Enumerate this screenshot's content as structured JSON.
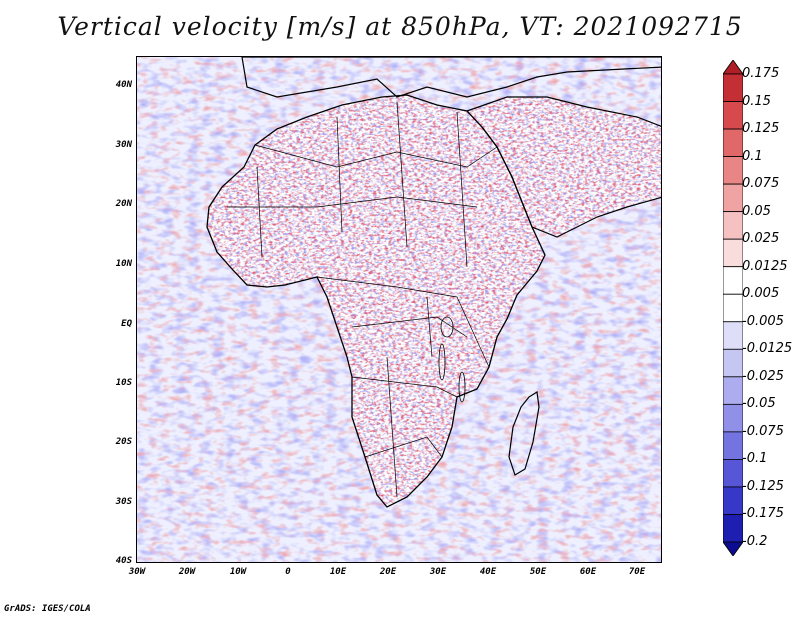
{
  "title": "Vertical velocity [m/s] at 850hPa, VT: 2021092715",
  "credit": "GrADS: IGES/COLA",
  "map": {
    "region": "Africa",
    "variable": "Vertical velocity",
    "units": "m/s",
    "level": "850hPa",
    "valid_time": "2021092715"
  },
  "axes": {
    "lat_labels": [
      "40N",
      "30N",
      "20N",
      "10N",
      "EQ",
      "10S",
      "20S",
      "30S",
      "40S"
    ],
    "lon_labels": [
      "30W",
      "20W",
      "10W",
      "0",
      "10E",
      "20E",
      "30E",
      "40E",
      "50E",
      "60E",
      "70E"
    ]
  },
  "colorbar": {
    "labels": [
      "0.175",
      "0.15",
      "0.125",
      "0.1",
      "0.075",
      "0.05",
      "0.025",
      "0.0125",
      "0.005",
      "-0.005",
      "-0.0125",
      "-0.025",
      "-0.05",
      "-0.075",
      "-0.1",
      "-0.125",
      "-0.175",
      "-0.2"
    ],
    "colors": [
      "#b01e28",
      "#c42f35",
      "#d64a4d",
      "#e06868",
      "#e88686",
      "#efa3a3",
      "#f5c1c1",
      "#f9dcdc",
      "#ffffff",
      "#ffffff",
      "#dedef8",
      "#c6c6f3",
      "#acacee",
      "#9090e8",
      "#7474e0",
      "#5656d6",
      "#3838c8",
      "#1e1eb0",
      "#0c0c90"
    ]
  }
}
